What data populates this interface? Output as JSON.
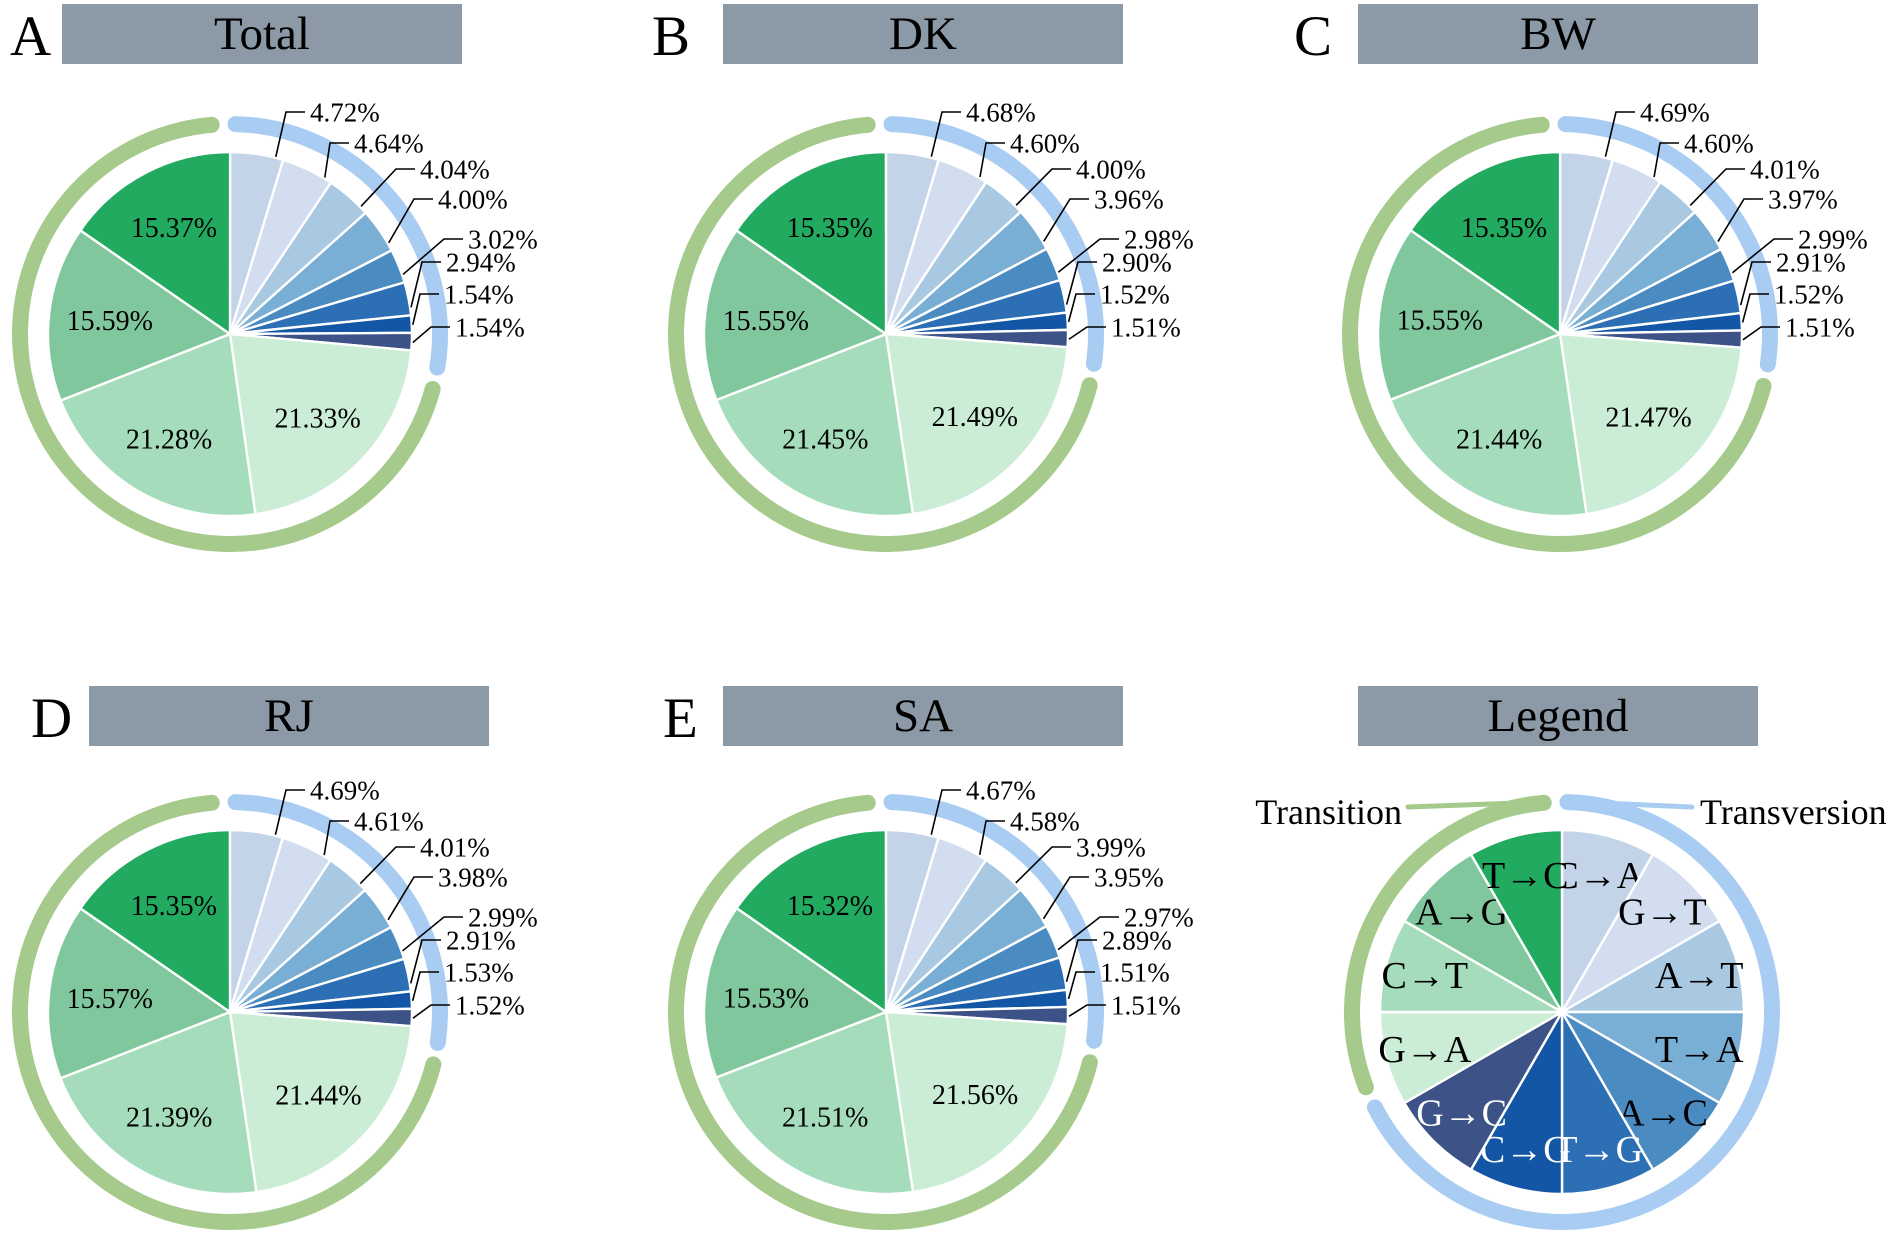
{
  "panels": [
    {
      "letter": "A",
      "title": "Total"
    },
    {
      "letter": "B",
      "title": "DK"
    },
    {
      "letter": "C",
      "title": "BW"
    },
    {
      "letter": "D",
      "title": "RJ"
    },
    {
      "letter": "E",
      "title": "SA"
    },
    {
      "letter": "",
      "title": "Legend"
    }
  ],
  "legend": {
    "transition_label": "Transition",
    "transversion_label": "Transversion"
  },
  "chart_data": {
    "type": "pie",
    "unit": "%",
    "label_format": "two decimals + %",
    "slice_order": [
      "C→A",
      "G→T",
      "A→T",
      "T→A",
      "A→C",
      "T→G",
      "C→G",
      "G→C",
      "G→A",
      "C→T",
      "A→G",
      "T→C"
    ],
    "groups": {
      "transversion": [
        "C→A",
        "G→T",
        "A→T",
        "T→A",
        "A→C",
        "T→G",
        "C→G",
        "G→C"
      ],
      "transition": [
        "G→A",
        "C→T",
        "A→G",
        "T→C"
      ]
    },
    "pies": [
      {
        "panel": "A",
        "title": "Total",
        "values": {
          "C→A": 4.72,
          "G→T": 4.64,
          "A→T": 4.04,
          "T→A": 4.0,
          "A→C": 3.02,
          "T→G": 2.94,
          "C→G": 1.54,
          "G→C": 1.54,
          "G→A": 21.33,
          "C→T": 21.28,
          "A→G": 15.59,
          "T→C": 15.37
        }
      },
      {
        "panel": "B",
        "title": "DK",
        "values": {
          "C→A": 4.68,
          "G→T": 4.6,
          "A→T": 4.0,
          "T→A": 3.96,
          "A→C": 2.98,
          "T→G": 2.9,
          "C→G": 1.52,
          "G→C": 1.51,
          "G→A": 21.49,
          "C→T": 21.45,
          "A→G": 15.55,
          "T→C": 15.35
        }
      },
      {
        "panel": "C",
        "title": "BW",
        "values": {
          "C→A": 4.69,
          "G→T": 4.6,
          "A→T": 4.01,
          "T→A": 3.97,
          "A→C": 2.99,
          "T→G": 2.91,
          "C→G": 1.52,
          "G→C": 1.51,
          "G→A": 21.47,
          "C→T": 21.44,
          "A→G": 15.55,
          "T→C": 15.35
        }
      },
      {
        "panel": "D",
        "title": "RJ",
        "values": {
          "C→A": 4.69,
          "G→T": 4.61,
          "A→T": 4.01,
          "T→A": 3.98,
          "A→C": 2.99,
          "T→G": 2.91,
          "C→G": 1.53,
          "G→C": 1.52,
          "G→A": 21.44,
          "C→T": 21.39,
          "A→G": 15.57,
          "T→C": 15.35
        }
      },
      {
        "panel": "E",
        "title": "SA",
        "values": {
          "C→A": 4.67,
          "G→T": 4.58,
          "A→T": 3.99,
          "T→A": 3.95,
          "A→C": 2.97,
          "T→G": 2.89,
          "C→G": 1.51,
          "G→C": 1.51,
          "G→A": 21.56,
          "C→T": 21.51,
          "A→G": 15.53,
          "T→C": 15.32
        }
      }
    ],
    "legend_pie": {
      "title": "Legend",
      "equal_slices": true,
      "slices": [
        "C→A",
        "G→T",
        "A→T",
        "T→A",
        "A→C",
        "T→G",
        "C→G",
        "G→C",
        "G→A",
        "C→T",
        "A→G",
        "T→C"
      ],
      "white_text_slices": [
        "T→G",
        "C→G",
        "G→C"
      ]
    }
  },
  "style": {
    "slice_colors": {
      "C→A": "#c3d3e8",
      "G→T": "#d2ddf0",
      "A→T": "#a9c9e3",
      "T→A": "#79aed5",
      "A→C": "#4a8cc2",
      "T→G": "#2d6fb5",
      "C→G": "#1356a6",
      "G→C": "#3d5286",
      "G→A": "#cbedd6",
      "C→T": "#a5dcbb",
      "A→G": "#80c79e",
      "T→C": "#21aa60"
    },
    "arc_transition_color": "#a5ca8c",
    "arc_transversion_color": "#a9cdf2",
    "title_bar_color": "#8b9aa6",
    "label_text_color": "#000000"
  }
}
